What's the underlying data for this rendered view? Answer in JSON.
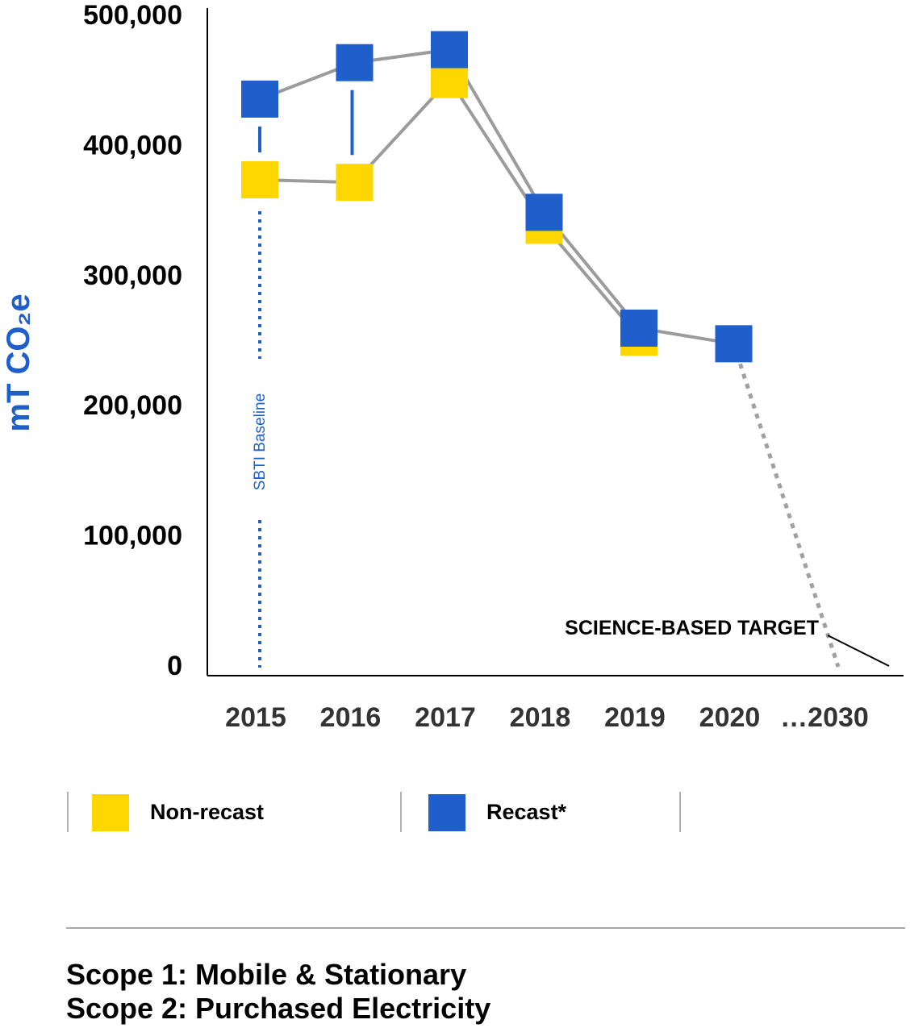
{
  "chart_data": {
    "type": "line",
    "categories": [
      "2015",
      "2016",
      "2017",
      "2018",
      "2019",
      "2020",
      "…2030"
    ],
    "series": [
      {
        "name": "Non-recast",
        "values": [
          373000,
          371000,
          450000,
          338000,
          252000,
          null,
          null
        ]
      },
      {
        "name": "Recast*",
        "values": [
          435000,
          463000,
          473000,
          348000,
          259000,
          247000,
          null
        ]
      }
    ],
    "target_path": {
      "from_category": "2020",
      "from_value": 247000,
      "to_category": "…2030",
      "to_value": 0
    },
    "ylabel": "mT CO₂e",
    "ylim": [
      0,
      500000
    ],
    "yticks": [
      "0",
      "100,000",
      "200,000",
      "300,000",
      "400,000",
      "500,000"
    ],
    "ytick_values": [
      0,
      100000,
      200000,
      300000,
      400000,
      500000
    ],
    "baseline": {
      "category": "2015",
      "label": "SBTI Baseline"
    },
    "annotation": "SCIENCE-BASED TARGET",
    "colors": {
      "non_recast": "#ffd700",
      "recast": "#1f5fcc",
      "line": "#9b9b9b",
      "baseline": "#1f5fcc"
    },
    "grid": false
  },
  "legend": {
    "items": [
      {
        "label": "Non-recast",
        "color": "#ffd700"
      },
      {
        "label": "Recast*",
        "color": "#1f5fcc"
      }
    ]
  },
  "footnote": {
    "line1": "Scope 1: Mobile & Stationary",
    "line2": "Scope 2: Purchased Electricity"
  }
}
